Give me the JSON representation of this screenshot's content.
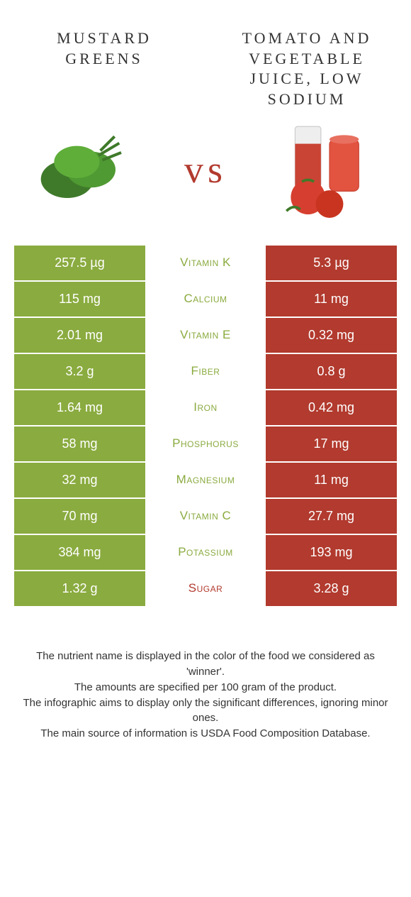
{
  "colors": {
    "left_bg": "#8aab3f",
    "right_bg": "#b23a2e",
    "mid_green": "#8aab3f",
    "mid_red": "#b23a2e",
    "text": "#333333",
    "white": "#ffffff"
  },
  "header": {
    "left_title": "Mustard greens",
    "right_title": "Tomato and vegetable juice, low sodium",
    "vs_label": "vs"
  },
  "rows": [
    {
      "nutrient": "Vitamin K",
      "left": "257.5 µg",
      "right": "5.3 µg",
      "winner": "left"
    },
    {
      "nutrient": "Calcium",
      "left": "115 mg",
      "right": "11 mg",
      "winner": "left"
    },
    {
      "nutrient": "Vitamin E",
      "left": "2.01 mg",
      "right": "0.32 mg",
      "winner": "left"
    },
    {
      "nutrient": "Fiber",
      "left": "3.2 g",
      "right": "0.8 g",
      "winner": "left"
    },
    {
      "nutrient": "Iron",
      "left": "1.64 mg",
      "right": "0.42 mg",
      "winner": "left"
    },
    {
      "nutrient": "Phosphorus",
      "left": "58 mg",
      "right": "17 mg",
      "winner": "left"
    },
    {
      "nutrient": "Magnesium",
      "left": "32 mg",
      "right": "11 mg",
      "winner": "left"
    },
    {
      "nutrient": "Vitamin C",
      "left": "70 mg",
      "right": "27.7 mg",
      "winner": "left"
    },
    {
      "nutrient": "Potassium",
      "left": "384 mg",
      "right": "193 mg",
      "winner": "left"
    },
    {
      "nutrient": "Sugar",
      "left": "1.32 g",
      "right": "3.28 g",
      "winner": "right"
    }
  ],
  "footer": {
    "line1": "The nutrient name is displayed in the color of the food we considered as 'winner'.",
    "line2": "The amounts are specified per 100 gram of the product.",
    "line3": "The infographic aims to display only the significant differences, ignoring minor ones.",
    "line4": "The main source of information is USDA Food Composition Database."
  },
  "style": {
    "title_fontsize": 22,
    "vs_fontsize": 54,
    "cell_fontsize": 18,
    "mid_fontsize": 17,
    "footer_fontsize": 15,
    "row_padding_v": 14
  }
}
